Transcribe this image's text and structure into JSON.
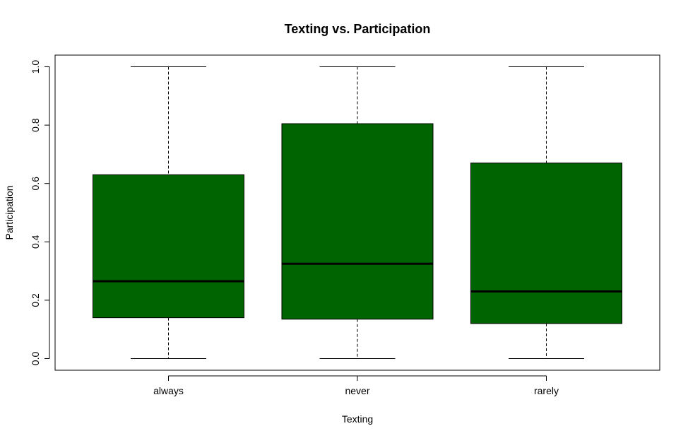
{
  "chart_data": {
    "type": "boxplot",
    "title": "Texting vs. Participation",
    "xlabel": "Texting",
    "ylabel": "Participation",
    "categories": [
      "always",
      "never",
      "rarely"
    ],
    "boxes": [
      {
        "category": "always",
        "whisker_low": 0.0,
        "q1": 0.14,
        "median": 0.265,
        "q3": 0.63,
        "whisker_high": 1.0
      },
      {
        "category": "never",
        "whisker_low": 0.0,
        "q1": 0.135,
        "median": 0.325,
        "q3": 0.805,
        "whisker_high": 1.0
      },
      {
        "category": "rarely",
        "whisker_low": 0.0,
        "q1": 0.12,
        "median": 0.23,
        "q3": 0.67,
        "whisker_high": 1.0
      }
    ],
    "yticks": [
      "0.0",
      "0.2",
      "0.4",
      "0.6",
      "0.8",
      "1.0"
    ],
    "ylim": [
      -0.04,
      1.04
    ],
    "grid": false,
    "legend": "none",
    "colors": {
      "box_fill": "#006400",
      "box_border": "#000000",
      "median": "#000000",
      "whisker": "#000000"
    }
  }
}
